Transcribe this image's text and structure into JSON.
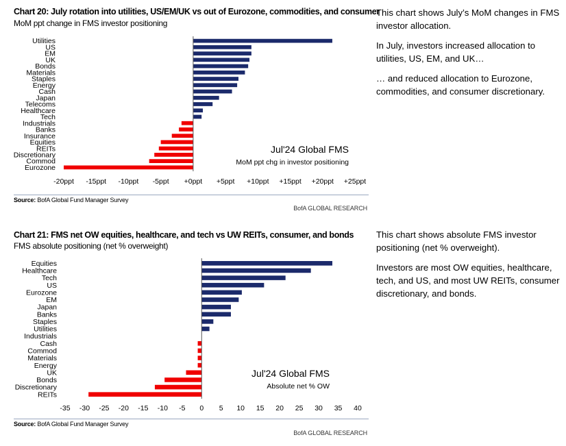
{
  "colors": {
    "positive": "#1b2a6b",
    "negative": "#f00000",
    "axis": "#555555"
  },
  "charts": [
    {
      "title": "Chart 20: July rotation into utilities, US/EM/UK vs out of Eurozone, commodities, and consumer",
      "subtitle": "MoM ppt change in FMS investor positioning",
      "source_label": "Source:",
      "source_text": " BofA Global Fund Manager Survey",
      "credit": "BofA GLOBAL RESEARCH",
      "annotation_title": "Jul'24 Global FMS",
      "annotation_sub": "MoM ppt chg in investor positioning"
    },
    {
      "title": "Chart 21: FMS net OW equities, healthcare, and tech vs UW REITs, consumer, and bonds",
      "subtitle": "FMS absolute positioning (net % overweight)",
      "source_label": "Source:",
      "source_text": " BofA Global Fund Manager Survey",
      "credit": "BofA GLOBAL RESEARCH",
      "annotation_title": "Jul'24 Global FMS",
      "annotation_sub": "Absolute net % OW"
    }
  ],
  "chart_data": [
    {
      "type": "bar",
      "orientation": "horizontal",
      "title": "Chart 20: July rotation into utilities, US/EM/UK vs out of Eurozone, commodities, and consumer",
      "subtitle": "MoM ppt change in FMS investor positioning",
      "categories": [
        "Utilities",
        "US",
        "EM",
        "UK",
        "Bonds",
        "Materials",
        "Staples",
        "Energy",
        "Cash",
        "Japan",
        "Telecoms",
        "Healthcare",
        "Tech",
        "Industrials",
        "Banks",
        "Insurance",
        "Equities",
        "REITs",
        "Discretionary",
        "Commod",
        "Eurozone"
      ],
      "values": [
        21.5,
        9,
        9,
        8.7,
        8.5,
        8,
        7,
        6.8,
        6,
        4,
        3,
        1.5,
        1.3,
        -1.8,
        -2.2,
        -3.3,
        -5,
        -5.3,
        -6,
        -6.8,
        -20
      ],
      "xlim": [
        -20,
        25
      ],
      "xticks": [
        -20,
        -15,
        -10,
        -5,
        0,
        5,
        10,
        15,
        20,
        25
      ],
      "xtick_labels": [
        "-20ppt",
        "-15ppt",
        "-10ppt",
        "-5ppt",
        "+0ppt",
        "+5ppt",
        "+10ppt",
        "+15ppt",
        "+20ppt",
        "+25ppt"
      ],
      "grid": false
    },
    {
      "type": "bar",
      "orientation": "horizontal",
      "title": "Chart 21: FMS net OW equities, healthcare, and tech vs UW REITs, consumer, and bonds",
      "subtitle": "FMS absolute positioning (net % overweight)",
      "categories": [
        "Equities",
        "Healthcare",
        "Tech",
        "US",
        "Eurozone",
        "EM",
        "Japan",
        "Banks",
        "Staples",
        "Utilities",
        "Industrials",
        "Cash",
        "Commod",
        "Materials",
        "Energy",
        "UK",
        "Bonds",
        "Discretionary",
        "REITs"
      ],
      "values": [
        33.5,
        28,
        21.5,
        16,
        10.3,
        9.5,
        7.5,
        7.5,
        3,
        2,
        0,
        -1,
        -1,
        -1,
        -1,
        -4,
        -9.5,
        -12,
        -29
      ],
      "xlim": [
        -35,
        40
      ],
      "xticks": [
        -35,
        -30,
        -25,
        -20,
        -15,
        -10,
        -5,
        0,
        5,
        10,
        15,
        20,
        25,
        30,
        35,
        40
      ],
      "xtick_labels": [
        "-35",
        "-30",
        "-25",
        "-20",
        "-15",
        "-10",
        "-5",
        "0",
        "5",
        "10",
        "15",
        "20",
        "25",
        "30",
        "35",
        "40"
      ],
      "grid": false
    }
  ],
  "commentary": [
    {
      "paragraphs": [
        "This chart shows July’s MoM changes in FMS investor allocation.",
        "In July, investors increased allocation to utilities, US, EM, and UK…",
        "… and reduced allocation to Eurozone, commodities, and consumer discretionary."
      ]
    },
    {
      "paragraphs": [
        "This chart shows absolute FMS investor positioning (net % overweight).",
        "Investors are most OW equities, healthcare, tech, and US, and most UW REITs, consumer discretionary, and bonds."
      ]
    }
  ]
}
